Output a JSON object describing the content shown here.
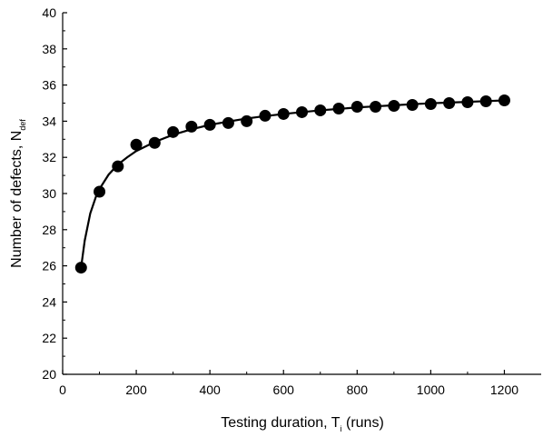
{
  "chart_data": {
    "type": "scatter",
    "xlabel": "Testing duration, T",
    "xlabel_subscript": "i",
    "xlabel_suffix": " (runs)",
    "ylabel": "Number of defects, N",
    "ylabel_subscript": "def",
    "xlim": [
      0,
      1300
    ],
    "ylim": [
      20,
      40
    ],
    "xticks": [
      0,
      200,
      400,
      600,
      800,
      1000,
      1200
    ],
    "yticks": [
      20,
      22,
      24,
      26,
      28,
      30,
      32,
      34,
      36,
      38,
      40
    ],
    "grid": false,
    "legend": "none",
    "series": [
      {
        "marker": "filled-circle",
        "color": "#000000",
        "x": [
          50,
          100,
          150,
          200,
          250,
          300,
          350,
          400,
          450,
          500,
          550,
          600,
          650,
          700,
          750,
          800,
          850,
          900,
          950,
          1000,
          1050,
          1100,
          1150,
          1200
        ],
        "y": [
          25.9,
          30.1,
          31.5,
          32.7,
          32.8,
          33.4,
          33.7,
          33.8,
          33.9,
          34.0,
          34.3,
          34.4,
          34.5,
          34.6,
          34.7,
          34.8,
          34.8,
          34.85,
          34.9,
          34.95,
          35.0,
          35.05,
          35.1,
          35.15
        ]
      }
    ],
    "fit_curve": {
      "color": "#000000",
      "x": [
        50,
        60,
        75,
        90,
        100,
        125,
        150,
        175,
        200,
        250,
        300,
        350,
        400,
        450,
        500,
        550,
        600,
        650,
        700,
        750,
        800,
        850,
        900,
        950,
        1000,
        1050,
        1100,
        1150,
        1200
      ],
      "y": [
        25.9,
        27.4,
        28.9,
        29.8,
        30.25,
        31.05,
        31.6,
        32.0,
        32.35,
        32.85,
        33.25,
        33.55,
        33.8,
        33.98,
        34.15,
        34.28,
        34.4,
        34.5,
        34.6,
        34.68,
        34.76,
        34.82,
        34.88,
        34.94,
        34.99,
        35.03,
        35.07,
        35.11,
        35.15
      ]
    }
  }
}
